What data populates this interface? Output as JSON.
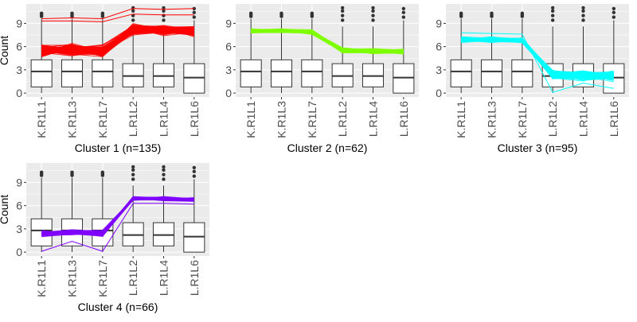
{
  "chart_data": [
    {
      "type": "boxplot-with-profiles",
      "title": "Cluster 1 (n=135)",
      "ylabel": "Count",
      "categories": [
        "K.R1L1",
        "K.R1L3",
        "K.R1L7",
        "L.R1L2",
        "L.R1L4",
        "L.R1L6"
      ],
      "ylim": [
        -0.5,
        11.5
      ],
      "yticks": [
        0,
        3,
        6,
        9
      ],
      "grid": true,
      "line_color": "#ff0000",
      "line_count": 135,
      "profile_center": [
        5.5,
        5.6,
        5.4,
        8.3,
        8.1,
        8.0
      ],
      "profile_spread": [
        2.0,
        1.9,
        1.9,
        1.7,
        1.6,
        1.7
      ],
      "profile_outliers": [
        [
          9.6,
          9.7,
          9.6,
          10.9,
          10.8,
          10.9
        ],
        [
          9.3,
          9.3,
          9.2,
          10.2,
          10.1,
          10.1
        ]
      ],
      "boxes": [
        {
          "q1": 0.8,
          "median": 2.8,
          "q3": 4.3,
          "whisker_low": 0.0,
          "whisker_high": 9.6,
          "outliers": [
            9.9,
            10.1,
            10.3
          ]
        },
        {
          "q1": 0.8,
          "median": 2.8,
          "q3": 4.3,
          "whisker_low": 0.0,
          "whisker_high": 9.6,
          "outliers": [
            9.9,
            10.1,
            10.3
          ]
        },
        {
          "q1": 0.8,
          "median": 2.8,
          "q3": 4.3,
          "whisker_low": 0.0,
          "whisker_high": 9.6,
          "outliers": [
            9.9,
            10.1,
            10.3
          ]
        },
        {
          "q1": 0.8,
          "median": 2.2,
          "q3": 3.8,
          "whisker_low": 0.0,
          "whisker_high": 8.6,
          "outliers": [
            9.4,
            10.0,
            10.6,
            11.0
          ]
        },
        {
          "q1": 0.8,
          "median": 2.2,
          "q3": 3.8,
          "whisker_low": 0.0,
          "whisker_high": 8.6,
          "outliers": [
            9.4,
            10.0,
            10.6,
            11.0
          ]
        },
        {
          "q1": 0.0,
          "median": 2.0,
          "q3": 3.8,
          "whisker_low": 0.0,
          "whisker_high": 9.4,
          "outliers": [
            9.8,
            10.4,
            10.9
          ]
        }
      ]
    },
    {
      "type": "boxplot-with-profiles",
      "title": "Cluster 2 (n=62)",
      "ylabel": "",
      "categories": [
        "K.R1L1",
        "K.R1L3",
        "K.R1L7",
        "L.R1L2",
        "L.R1L4",
        "L.R1L6"
      ],
      "ylim": [
        -0.5,
        11.5
      ],
      "yticks": [
        0,
        3,
        6,
        9
      ],
      "grid": true,
      "line_color": "#7fff00",
      "line_count": 62,
      "profile_center": [
        8.0,
        8.0,
        7.9,
        5.5,
        5.4,
        5.3
      ],
      "profile_spread": [
        0.8,
        0.8,
        0.8,
        1.0,
        1.0,
        1.0
      ],
      "profile_outliers": [],
      "boxes": [
        {
          "q1": 0.8,
          "median": 2.8,
          "q3": 4.3,
          "whisker_low": 0.0,
          "whisker_high": 9.6,
          "outliers": [
            9.9,
            10.1,
            10.3
          ]
        },
        {
          "q1": 0.8,
          "median": 2.8,
          "q3": 4.3,
          "whisker_low": 0.0,
          "whisker_high": 9.6,
          "outliers": [
            9.9,
            10.1,
            10.3
          ]
        },
        {
          "q1": 0.8,
          "median": 2.8,
          "q3": 4.3,
          "whisker_low": 0.0,
          "whisker_high": 9.6,
          "outliers": [
            9.9,
            10.1,
            10.3
          ]
        },
        {
          "q1": 0.8,
          "median": 2.2,
          "q3": 3.8,
          "whisker_low": 0.0,
          "whisker_high": 8.6,
          "outliers": [
            9.4,
            10.0,
            10.6,
            11.0
          ]
        },
        {
          "q1": 0.8,
          "median": 2.2,
          "q3": 3.8,
          "whisker_low": 0.0,
          "whisker_high": 8.6,
          "outliers": [
            9.4,
            10.0,
            10.6,
            11.0
          ]
        },
        {
          "q1": 0.0,
          "median": 2.0,
          "q3": 3.8,
          "whisker_low": 0.0,
          "whisker_high": 9.4,
          "outliers": [
            9.8,
            10.4,
            10.9
          ]
        }
      ]
    },
    {
      "type": "boxplot-with-profiles",
      "title": "Cluster 3 (n=95)",
      "ylabel": "",
      "categories": [
        "K.R1L1",
        "K.R1L3",
        "K.R1L7",
        "L.R1L2",
        "L.R1L4",
        "L.R1L6"
      ],
      "ylim": [
        -0.5,
        11.5
      ],
      "yticks": [
        0,
        3,
        6,
        9
      ],
      "grid": true,
      "line_color": "#00ffff",
      "line_count": 95,
      "profile_center": [
        6.9,
        6.9,
        6.8,
        2.4,
        2.3,
        2.2
      ],
      "profile_spread": [
        0.9,
        0.9,
        0.9,
        1.8,
        1.8,
        1.8
      ],
      "profile_outliers": [
        [
          7.8,
          7.7,
          7.6,
          0.1,
          1.3,
          0.6
        ]
      ],
      "boxes": [
        {
          "q1": 0.8,
          "median": 2.8,
          "q3": 4.3,
          "whisker_low": 0.0,
          "whisker_high": 9.6,
          "outliers": [
            9.9,
            10.1,
            10.3
          ]
        },
        {
          "q1": 0.8,
          "median": 2.8,
          "q3": 4.3,
          "whisker_low": 0.0,
          "whisker_high": 9.6,
          "outliers": [
            9.9,
            10.1,
            10.3
          ]
        },
        {
          "q1": 0.8,
          "median": 2.8,
          "q3": 4.3,
          "whisker_low": 0.0,
          "whisker_high": 9.6,
          "outliers": [
            9.9,
            10.1,
            10.3
          ]
        },
        {
          "q1": 0.8,
          "median": 2.2,
          "q3": 3.8,
          "whisker_low": 0.0,
          "whisker_high": 8.6,
          "outliers": [
            9.4,
            10.0,
            10.6,
            11.0
          ]
        },
        {
          "q1": 0.8,
          "median": 2.2,
          "q3": 3.8,
          "whisker_low": 0.0,
          "whisker_high": 8.6,
          "outliers": [
            9.4,
            10.0,
            10.6,
            11.0
          ]
        },
        {
          "q1": 0.0,
          "median": 2.0,
          "q3": 3.8,
          "whisker_low": 0.0,
          "whisker_high": 9.4,
          "outliers": [
            9.8,
            10.4,
            10.9
          ]
        }
      ]
    },
    {
      "type": "boxplot-with-profiles",
      "title": "Cluster 4 (n=66)",
      "ylabel": "Count",
      "categories": [
        "K.R1L1",
        "K.R1L3",
        "K.R1L7",
        "L.R1L2",
        "L.R1L4",
        "L.R1L6"
      ],
      "ylim": [
        -0.5,
        11.5
      ],
      "yticks": [
        0,
        3,
        6,
        9
      ],
      "grid": true,
      "line_color": "#7f00ff",
      "line_count": 66,
      "profile_center": [
        2.4,
        2.5,
        2.4,
        6.9,
        6.9,
        6.8
      ],
      "profile_spread": [
        1.1,
        1.0,
        1.1,
        0.7,
        0.7,
        0.7
      ],
      "profile_outliers": [
        [
          0.1,
          1.4,
          0.1,
          6.3,
          6.3,
          6.2
        ]
      ],
      "boxes": [
        {
          "q1": 0.8,
          "median": 2.8,
          "q3": 4.3,
          "whisker_low": 0.0,
          "whisker_high": 9.6,
          "outliers": [
            9.9,
            10.1,
            10.3
          ]
        },
        {
          "q1": 0.8,
          "median": 2.8,
          "q3": 4.3,
          "whisker_low": 0.0,
          "whisker_high": 9.6,
          "outliers": [
            9.9,
            10.1,
            10.3
          ]
        },
        {
          "q1": 0.8,
          "median": 2.8,
          "q3": 4.3,
          "whisker_low": 0.0,
          "whisker_high": 9.6,
          "outliers": [
            9.9,
            10.1,
            10.3
          ]
        },
        {
          "q1": 0.8,
          "median": 2.2,
          "q3": 3.8,
          "whisker_low": 0.0,
          "whisker_high": 8.6,
          "outliers": [
            9.4,
            10.0,
            10.6,
            11.0
          ]
        },
        {
          "q1": 0.8,
          "median": 2.2,
          "q3": 3.8,
          "whisker_low": 0.0,
          "whisker_high": 8.6,
          "outliers": [
            9.4,
            10.0,
            10.6,
            11.0
          ]
        },
        {
          "q1": 0.0,
          "median": 2.0,
          "q3": 3.8,
          "whisker_low": 0.0,
          "whisker_high": 9.4,
          "outliers": [
            9.8,
            10.4,
            10.9
          ]
        }
      ]
    }
  ],
  "colors": {
    "panel_background": "#ebebeb",
    "gridline": "#ffffff",
    "box_fill": "#ffffff",
    "box_stroke": "#333333",
    "axis_text": "#4d4d4d"
  }
}
